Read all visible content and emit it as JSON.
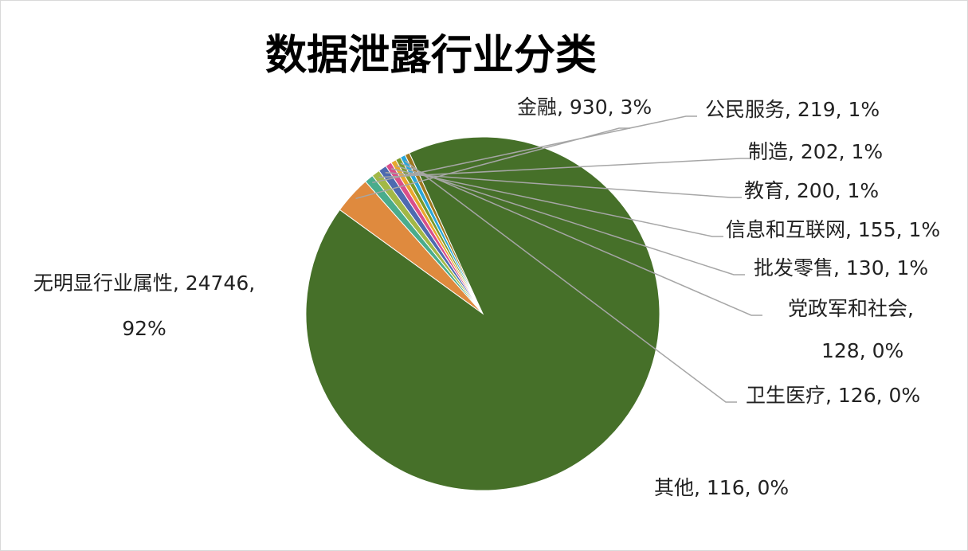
{
  "chart_data": {
    "type": "pie",
    "title": "数据泄露行业分类",
    "start_category": "金融",
    "slices": [
      {
        "name": "金融",
        "value": 930,
        "percent": "3%",
        "color": "#df8a3e",
        "label_lines": [
          "金融, 930, 3%"
        ]
      },
      {
        "name": "公民服务",
        "value": 219,
        "percent": "1%",
        "color": "#4aac8c",
        "label_lines": [
          "公民服务, 219, 1%"
        ]
      },
      {
        "name": "制造",
        "value": 202,
        "percent": "1%",
        "color": "#a2b846",
        "label_lines": [
          "制造, 202, 1%"
        ]
      },
      {
        "name": "教育",
        "value": 200,
        "percent": "1%",
        "color": "#4d6ab0",
        "label_lines": [
          "教育, 200, 1%"
        ]
      },
      {
        "name": "信息和互联网",
        "value": 155,
        "percent": "1%",
        "color": "#d94f8a",
        "label_lines": [
          "信息和互联网, 155, 1%"
        ]
      },
      {
        "name": "批发零售",
        "value": 130,
        "percent": "1%",
        "color": "#e8a72e",
        "label_lines": [
          "批发零售, 130, 1%"
        ]
      },
      {
        "name": "党政军和社会",
        "value": 128,
        "percent": "0%",
        "color": "#7a9a2a",
        "label_lines": [
          "党政军和社会,",
          "128, 0%"
        ]
      },
      {
        "name": "卫生医疗",
        "value": 126,
        "percent": "0%",
        "color": "#2aa6d8",
        "label_lines": [
          "卫生医疗, 126, 0%"
        ]
      },
      {
        "name": "其他",
        "value": 116,
        "percent": "0%",
        "color": "#a0781e",
        "label_lines": [
          "其他, 116, 0%"
        ]
      },
      {
        "name": "无明显行业属性",
        "value": 24746,
        "percent": "92%",
        "color": "#467029",
        "label_lines": [
          "无明显行业属性, 24746,",
          "92%"
        ]
      }
    ]
  }
}
